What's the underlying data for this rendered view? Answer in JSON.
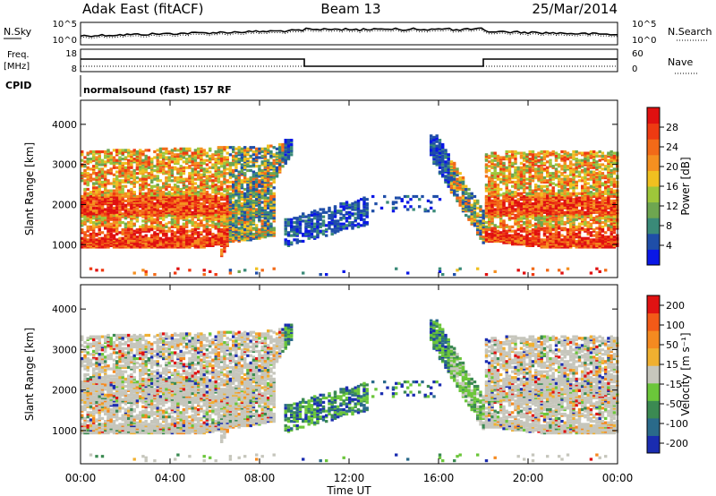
{
  "header": {
    "station": "Adak East (fitACF)",
    "beam": "Beam 13",
    "date": "25/Mar/2014"
  },
  "noise_panel": {
    "left_label": "N.Sky",
    "right_label": "N.Search",
    "left_ticks": [
      "10^5",
      "10^0"
    ],
    "right_ticks": [
      "10^5",
      "10^0"
    ]
  },
  "freq_panel": {
    "left_label_1": "Freq.",
    "left_label_2": "[MHz]",
    "right_label": "Nave",
    "left_ticks": [
      "18",
      "8"
    ],
    "right_ticks": [
      "60",
      "0"
    ]
  },
  "cpid": {
    "label": "CPID",
    "program": "normalsound (fast) 157 RF"
  },
  "colors": {
    "power_scale": [
      "#0a17e6",
      "#1f4ea8",
      "#3a8a78",
      "#6ea650",
      "#9ec63a",
      "#f0c020",
      "#f59020",
      "#f26a18",
      "#ee3a12",
      "#e01010"
    ],
    "velocity_scale": [
      "#1a2cb0",
      "#2a6a8a",
      "#3b8a52",
      "#6bc63a",
      "#c6c6bc",
      "#f0b030",
      "#f58a20",
      "#f25a18",
      "#e01212"
    ],
    "ground_scatter": "#c6c6bc"
  },
  "chart_data": [
    {
      "type": "heatmap",
      "title": "",
      "xlabel": "Time UT",
      "ylabel": "Slant Range [km]",
      "x_ticks": [
        "00:00",
        "04:00",
        "08:00",
        "12:00",
        "16:00",
        "20:00",
        "00:00"
      ],
      "y_ticks": [
        "1000",
        "2000",
        "3000",
        "4000"
      ],
      "xlim": [
        0,
        24
      ],
      "ylim": [
        180,
        4600
      ],
      "colorbar": {
        "label": "Power [dB]",
        "ticks": [
          "4",
          "8",
          "12",
          "16",
          "20",
          "24",
          "28"
        ],
        "range": [
          0,
          32
        ]
      }
    },
    {
      "type": "heatmap",
      "title": "",
      "xlabel": "Time UT",
      "ylabel": "Slant Range [km]",
      "x_ticks": [
        "00:00",
        "04:00",
        "08:00",
        "12:00",
        "16:00",
        "20:00",
        "00:00"
      ],
      "y_ticks": [
        "1000",
        "2000",
        "3000",
        "4000"
      ],
      "xlim": [
        0,
        24
      ],
      "ylim": [
        180,
        4600
      ],
      "colorbar": {
        "label": "Velocity [m s⁻¹]",
        "ticks": [
          "200",
          "100",
          "50",
          "15",
          "-15",
          "-50",
          "-100",
          "-200"
        ]
      }
    }
  ]
}
